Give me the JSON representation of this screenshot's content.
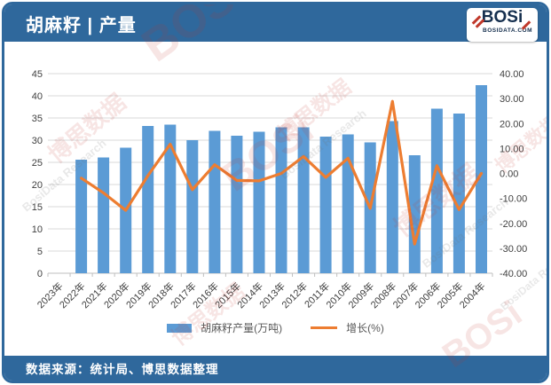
{
  "header": {
    "title": "胡麻籽 | 产量",
    "logo_text": "BOSi",
    "logo_subtext": "BOSIDATA.COM"
  },
  "footer": {
    "source": "数据来源：统计局、博思数据整理"
  },
  "colors": {
    "header_bar": "#2f689c",
    "bar": "#5b9bd5",
    "line": "#ed7d31",
    "gridline": "#d9d9d9",
    "axis_line": "#bfbfbf",
    "watermark_red": "rgba(192,57,43,0.13)",
    "watermark_gray": "rgba(110,110,110,0.16)"
  },
  "watermark": {
    "texts": [
      "博思数据",
      "BosiData Research",
      "BOSi"
    ]
  },
  "chart_data": {
    "type": "bar+line",
    "title": "",
    "categories": [
      "2023年",
      "2022年",
      "2021年",
      "2020年",
      "2019年",
      "2018年",
      "2017年",
      "2016年",
      "2015年",
      "2014年",
      "2013年",
      "2012年",
      "2011年",
      "2010年",
      "2009年",
      "2008年",
      "2007年",
      "2006年",
      "2005年",
      "2004年"
    ],
    "series": [
      {
        "name": "胡麻籽产量(万吨)",
        "type": "bar",
        "axis": "left",
        "color": "#5b9bd5",
        "values": [
          null,
          25.6,
          26.1,
          28.3,
          33.2,
          33.5,
          30.0,
          32.1,
          31.0,
          31.9,
          32.9,
          32.9,
          30.8,
          31.3,
          29.5,
          34.3,
          26.6,
          37.1,
          36.0,
          42.4
        ]
      },
      {
        "name": "增长(%)",
        "type": "line",
        "axis": "right",
        "color": "#ed7d31",
        "values": [
          null,
          -1.9,
          -7.8,
          -14.8,
          -0.9,
          11.7,
          -6.5,
          3.5,
          -2.8,
          -3.0,
          0.0,
          6.8,
          -1.6,
          6.1,
          -14.0,
          28.9,
          -28.3,
          3.1,
          -14.5,
          0.0
        ]
      }
    ],
    "left_axis": {
      "min": 0,
      "max": 45,
      "step": 5,
      "ticks": [
        "45",
        "40",
        "35",
        "30",
        "25",
        "20",
        "15",
        "10",
        "5",
        "0"
      ]
    },
    "right_axis": {
      "min": -40,
      "max": 40,
      "step": 10,
      "ticks": [
        "40.00",
        "30.00",
        "20.00",
        "10.00",
        "0.00",
        "-10.00",
        "-20.00",
        "-30.00",
        "-40.00"
      ]
    },
    "legend_position": "bottom",
    "grid": true
  }
}
